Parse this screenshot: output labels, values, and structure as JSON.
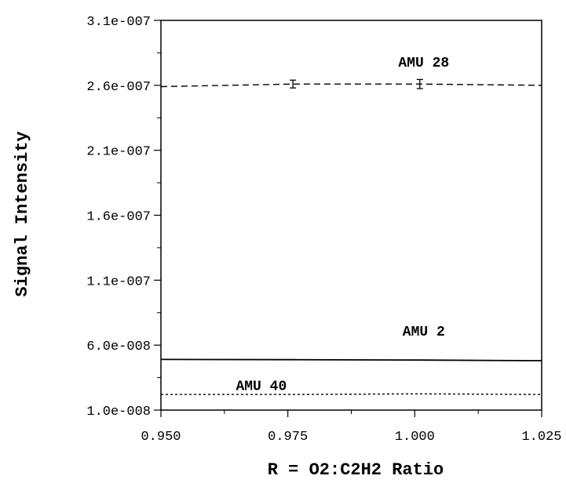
{
  "chart_data": {
    "type": "line",
    "title": "",
    "xlabel": "R = O2:C2H2 Ratio",
    "ylabel": "Signal Intensity",
    "xlim": [
      0.95,
      1.025
    ],
    "ylim": [
      1e-08,
      3.1e-07
    ],
    "xticks": [
      0.95,
      0.975,
      1.0,
      1.025
    ],
    "xtick_labels": [
      "0.950",
      "0.975",
      "1.000",
      "1.025"
    ],
    "yticks": [
      1e-08,
      6e-08,
      1.1e-07,
      1.6e-07,
      2.1e-07,
      2.6e-07,
      3.1e-07
    ],
    "ytick_labels": [
      "1.0e-008",
      "6.0e-008",
      "1.1e-007",
      "1.6e-007",
      "2.1e-007",
      "2.6e-007",
      "3.1e-007"
    ],
    "grid": false,
    "series": [
      {
        "name": "AMU 28",
        "line_style": "dashed",
        "x": [
          0.95,
          0.976,
          1.001,
          1.025
        ],
        "y": [
          2.59e-07,
          2.61e-07,
          2.61e-07,
          2.6e-07
        ],
        "error": [
          0,
          3e-09,
          3.5e-09,
          0
        ],
        "label_at": [
          1.001,
          2.78e-07
        ]
      },
      {
        "name": "AMU 2",
        "line_style": "solid",
        "x": [
          0.95,
          0.976,
          1.001,
          1.025
        ],
        "y": [
          4.9e-08,
          4.88e-08,
          4.85e-08,
          4.8e-08
        ],
        "error": [
          0,
          0,
          0,
          0
        ],
        "label_at": [
          1.001,
          7.1e-08
        ]
      },
      {
        "name": "AMU 40",
        "line_style": "dotted",
        "x": [
          0.95,
          0.976,
          1.001,
          1.025
        ],
        "y": [
          2.2e-08,
          2.2e-08,
          2.25e-08,
          2.2e-08
        ],
        "error": [
          0,
          0,
          0,
          0
        ],
        "label_at": [
          0.969,
          2.9e-08
        ]
      }
    ]
  }
}
